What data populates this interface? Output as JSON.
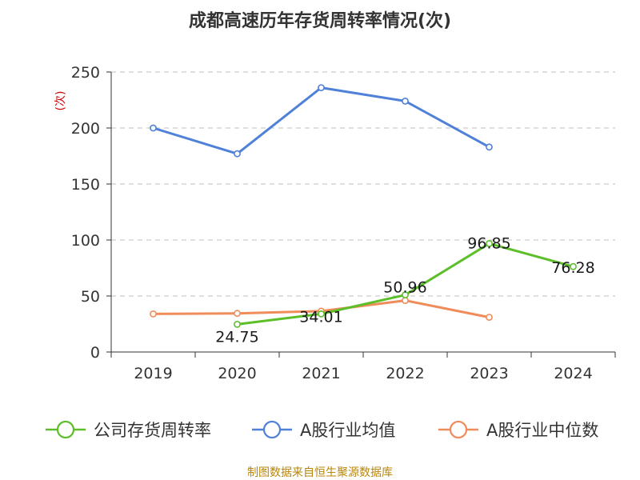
{
  "chart_data": {
    "type": "line",
    "title": "成都高速历年存货周转率情况(次)",
    "ylabel": "(次)",
    "xlabel": "",
    "categories": [
      "2019",
      "2020",
      "2021",
      "2022",
      "2023",
      "2024"
    ],
    "ylim": [
      0,
      250
    ],
    "yticks": [
      0,
      50,
      100,
      150,
      200,
      250
    ],
    "grid": true,
    "legend_position": "bottom",
    "series": [
      {
        "name": "公司存货周转率",
        "color": "#5cbf2a",
        "values": [
          null,
          24.75,
          34.01,
          50.96,
          96.85,
          76.28
        ],
        "labels": [
          "",
          "24.75",
          "34.01",
          "50.96",
          "96.85",
          "76.28"
        ]
      },
      {
        "name": "A股行业均值",
        "color": "#4f81d9",
        "values": [
          200,
          177,
          236,
          224,
          183,
          null
        ],
        "labels": [
          "",
          "",
          "",
          "",
          "",
          ""
        ]
      },
      {
        "name": "A股行业中位数",
        "color": "#f08c5a",
        "values": [
          34,
          34.5,
          36.5,
          46,
          31,
          null
        ],
        "labels": [
          "",
          "",
          "",
          "",
          "",
          ""
        ]
      }
    ],
    "source": "制图数据来自恒生聚源数据库"
  }
}
